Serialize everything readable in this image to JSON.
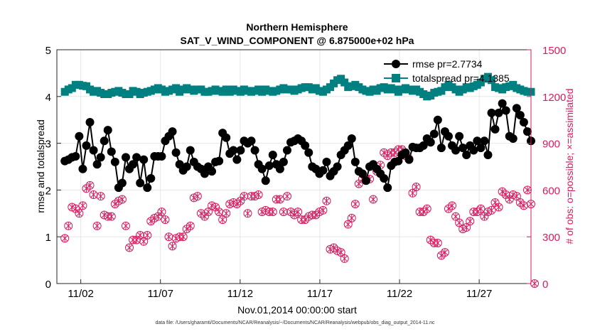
{
  "chart_data": {
    "type": "line",
    "title_line1": "Northern Hemisphere",
    "title_line2": "SAT_V_WIND_COMPONENT @ 6.875000e+02 hPa",
    "xlabel": "Nov.01,2014 00:00:00 start",
    "ylabel_left": "rmse and totalspread",
    "ylabel_right": "# of obs: o=possible; ×=assimilated",
    "x_range": [
      0.5,
      30.25
    ],
    "y_left_range": [
      0,
      5
    ],
    "y_right_range": [
      0,
      1500
    ],
    "x_ticks": [
      {
        "value": 2,
        "label": "11/02"
      },
      {
        "value": 7,
        "label": "11/07"
      },
      {
        "value": 12,
        "label": "11/12"
      },
      {
        "value": 17,
        "label": "11/17"
      },
      {
        "value": 22,
        "label": "11/22"
      },
      {
        "value": 27,
        "label": "11/27"
      }
    ],
    "y_left_ticks": [
      "0",
      "1",
      "2",
      "3",
      "4",
      "5"
    ],
    "y_right_ticks": [
      "0",
      "300",
      "600",
      "900",
      "1200",
      "1500"
    ],
    "legend": [
      {
        "label": "rmse pr=2.7734",
        "color": "#000000"
      },
      {
        "label": "totalspread pr=4.1385",
        "color": "#008080"
      }
    ],
    "colors": {
      "rmse": "#000000",
      "totalspread": "#008080",
      "obs": "#d81b60",
      "grid": "#e6e6e6"
    },
    "series": [
      {
        "name": "rmse",
        "axis": "left",
        "values": [
          2.62,
          2.65,
          2.7,
          2.72,
          3.15,
          2.45,
          2.95,
          3.45,
          2.85,
          2.55,
          2.7,
          3.05,
          3.28,
          2.82,
          2.6,
          2.05,
          2.15,
          2.7,
          2.45,
          2.55,
          2.7,
          2.15,
          2.65,
          2.05,
          2.25,
          2.72,
          2.72,
          2.72,
          3.05,
          3.15,
          3.25,
          2.8,
          2.55,
          2.42,
          2.5,
          2.85,
          2.6,
          2.5,
          2.45,
          2.35,
          2.5,
          2.4,
          2.6,
          2.62,
          3.22,
          3.12,
          2.78,
          2.85,
          2.65,
          2.85,
          3.05,
          3.0,
          3.05,
          2.85,
          2.55,
          2.45,
          2.2,
          2.52,
          2.75,
          2.55,
          2.45,
          2.6,
          2.85,
          3.02,
          3.05,
          3.1,
          3.05,
          2.95,
          2.8,
          2.5,
          2.45,
          2.35,
          2.42,
          2.6,
          2.3,
          2.4,
          2.5,
          2.75,
          2.85,
          2.95,
          3.1,
          2.6,
          2.4,
          2.35,
          2.2,
          2.5,
          2.55,
          2.45,
          2.35,
          2.25,
          2.05,
          2.52,
          2.6,
          2.62,
          2.75,
          2.8,
          2.65,
          2.92,
          2.9,
          2.9,
          2.95,
          3.1,
          3.02,
          3.2,
          3.5,
          2.9,
          3.25,
          3.15,
          2.95,
          2.85,
          3.15,
          2.9,
          2.75,
          2.95,
          2.85,
          3.05,
          2.9,
          3.05,
          2.75,
          3.65,
          3.3,
          3.65,
          3.85,
          3.7,
          3.15,
          3.1,
          3.75,
          3.6,
          3.45,
          3.25,
          3.05
        ]
      },
      {
        "name": "totalspread",
        "axis": "left",
        "values": [
          4.1,
          4.15,
          4.18,
          4.25,
          4.25,
          4.23,
          4.22,
          4.15,
          4.1,
          4.12,
          4.08,
          4.05,
          4.05,
          4.08,
          4.1,
          4.12,
          4.08,
          4.05,
          4.05,
          4.12,
          4.1,
          4.05,
          4.08,
          4.1,
          4.12,
          4.15,
          4.18,
          4.15,
          4.1,
          4.12,
          4.15,
          4.18,
          4.1,
          4.15,
          4.18,
          4.15,
          4.12,
          4.15,
          4.15,
          4.1,
          4.1,
          4.12,
          4.15,
          4.12,
          4.1,
          4.15,
          4.1,
          4.15,
          4.12,
          4.1,
          4.15,
          4.12,
          4.1,
          4.12,
          4.15,
          4.1,
          4.15,
          4.12,
          4.1,
          4.12,
          4.15,
          4.18,
          4.15,
          4.15,
          4.12,
          4.15,
          4.18,
          4.2,
          4.2,
          4.15,
          4.18,
          4.12,
          4.1,
          4.15,
          4.2,
          4.28,
          4.35,
          4.38,
          4.3,
          4.2,
          4.22,
          4.25,
          4.2,
          4.15,
          4.12,
          4.1,
          4.15,
          4.12,
          4.18,
          4.2,
          4.15,
          4.18,
          4.15,
          4.1,
          4.15,
          4.18,
          4.15,
          4.12,
          4.15,
          4.1,
          4.05,
          4.0,
          4.02,
          4.08,
          4.1,
          4.12,
          4.2,
          4.25,
          4.2,
          4.15,
          4.1,
          4.15,
          4.2,
          4.18,
          4.22,
          4.25,
          4.3,
          4.38,
          4.42,
          4.35,
          4.2,
          4.18,
          4.15,
          4.2,
          4.22,
          4.25,
          4.18,
          4.15,
          4.12,
          4.1,
          4.1
        ]
      },
      {
        "name": "obs_possible",
        "axis": "right",
        "values": [
          290,
          370,
          490,
          480,
          450,
          500,
          610,
          630,
          570,
          370,
          560,
          440,
          430,
          430,
          510,
          530,
          540,
          370,
          230,
          280,
          280,
          310,
          270,
          310,
          400,
          420,
          430,
          460,
          410,
          300,
          240,
          290,
          300,
          300,
          350,
          370,
          550,
          560,
          450,
          430,
          460,
          500,
          490,
          460,
          410,
          450,
          510,
          520,
          510,
          530,
          560,
          450,
          560,
          560,
          570,
          460,
          470,
          460,
          460,
          540,
          540,
          460,
          560,
          460,
          440,
          460,
          410,
          410,
          430,
          440,
          440,
          460,
          470,
          530,
          220,
          230,
          210,
          200,
          160,
          380,
          420,
          510,
          640,
          670,
          670,
          670,
          540,
          720,
          760,
          840,
          820,
          840,
          840,
          860,
          860,
          820,
          800,
          580,
          620,
          460,
          460,
          480,
          280,
          260,
          260,
          180,
          200,
          480,
          500,
          430,
          390,
          350,
          360,
          400,
          460,
          460,
          480,
          430,
          460,
          470,
          520,
          490,
          590,
          570,
          540,
          570,
          560,
          520,
          500,
          600,
          510,
          0
        ]
      },
      {
        "name": "obs_assimilated",
        "axis": "right",
        "values": [
          290,
          370,
          490,
          480,
          450,
          500,
          610,
          630,
          570,
          370,
          560,
          440,
          430,
          430,
          510,
          530,
          540,
          370,
          230,
          280,
          280,
          310,
          270,
          310,
          400,
          420,
          430,
          460,
          410,
          300,
          240,
          290,
          300,
          300,
          350,
          370,
          550,
          560,
          450,
          430,
          460,
          500,
          490,
          460,
          410,
          450,
          510,
          520,
          510,
          530,
          560,
          450,
          560,
          560,
          570,
          460,
          470,
          460,
          460,
          540,
          540,
          460,
          560,
          460,
          440,
          460,
          410,
          410,
          430,
          440,
          440,
          460,
          470,
          530,
          220,
          230,
          210,
          200,
          160,
          380,
          420,
          510,
          640,
          670,
          670,
          670,
          540,
          720,
          760,
          840,
          820,
          840,
          840,
          860,
          860,
          820,
          800,
          580,
          620,
          460,
          460,
          480,
          280,
          260,
          260,
          180,
          200,
          480,
          500,
          430,
          390,
          350,
          360,
          400,
          460,
          460,
          480,
          430,
          460,
          470,
          520,
          490,
          590,
          570,
          540,
          570,
          560,
          520,
          500,
          600,
          510,
          0
        ]
      }
    ],
    "footer": "data file: /Users/gharamti/Documents/NCAR/Reanalysis/~/Documents/NCAR/Reanalysis/webpub/obs_diag_output_2014-11.nc"
  }
}
